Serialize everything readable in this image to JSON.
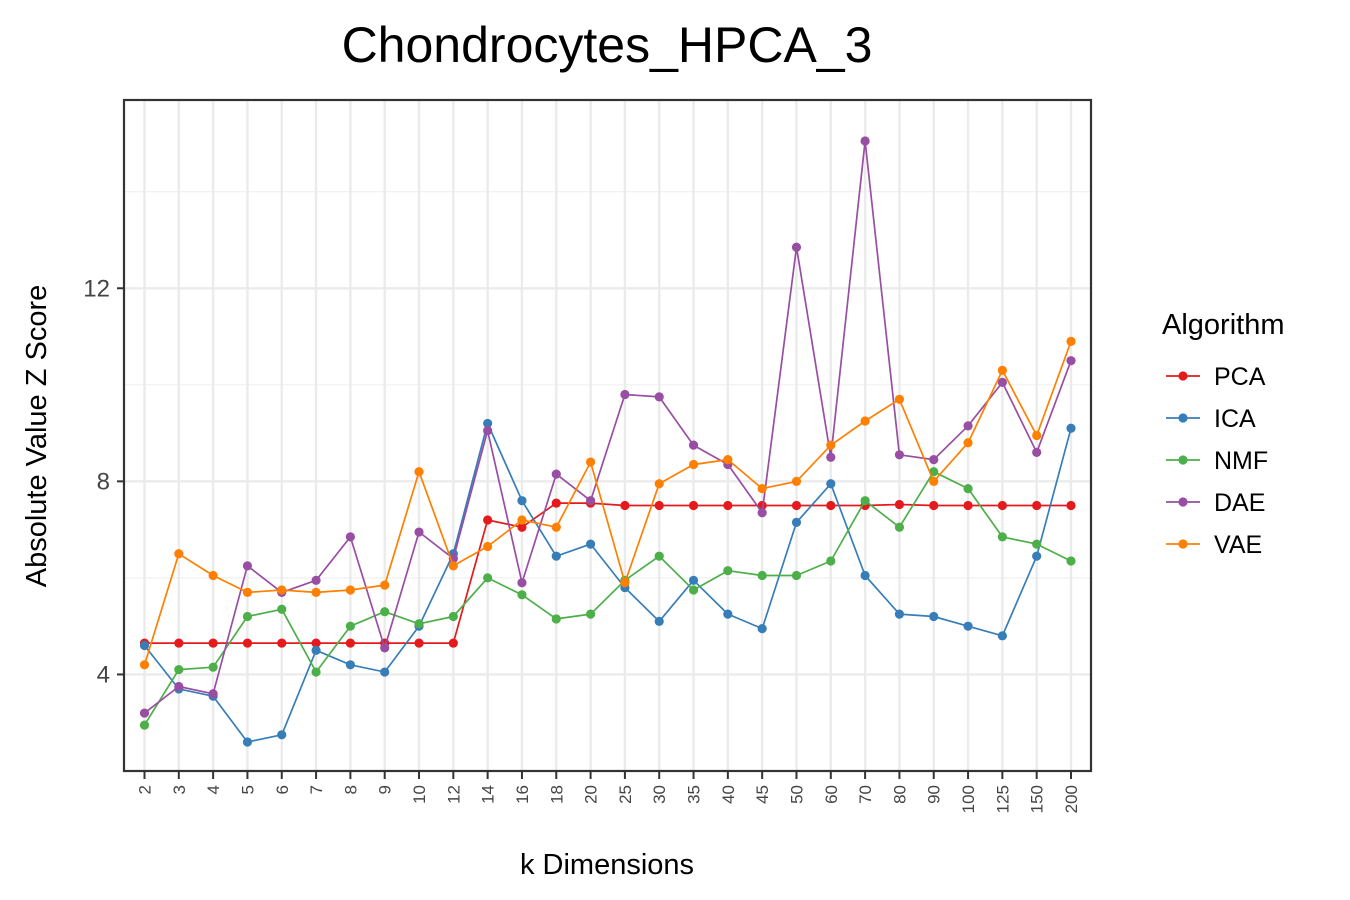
{
  "chart_data": {
    "type": "line",
    "title": "Chondrocytes_HPCA_3",
    "xlabel": "k Dimensions",
    "ylabel": "Absolute Value Z Score",
    "categories": [
      "2",
      "3",
      "4",
      "5",
      "6",
      "7",
      "8",
      "9",
      "10",
      "12",
      "14",
      "16",
      "18",
      "20",
      "25",
      "30",
      "35",
      "40",
      "45",
      "50",
      "60",
      "70",
      "80",
      "90",
      "100",
      "125",
      "150",
      "200"
    ],
    "ylim": [
      2.0,
      15.9
    ],
    "yticks": [
      4,
      8,
      12
    ],
    "ytick_labels": [
      "4",
      "8",
      "12"
    ],
    "grid": true,
    "legend_title": "Algorithm",
    "legend_position": "right",
    "series": [
      {
        "name": "PCA",
        "color": "#e41a1c",
        "values": [
          4.65,
          4.65,
          4.65,
          4.65,
          4.65,
          4.65,
          4.65,
          4.65,
          4.65,
          4.65,
          7.2,
          7.05,
          7.55,
          7.55,
          7.5,
          7.5,
          7.5,
          7.5,
          7.5,
          7.5,
          7.5,
          7.5,
          7.52,
          7.5,
          7.5,
          7.5,
          7.5,
          7.5
        ]
      },
      {
        "name": "ICA",
        "color": "#377eb8",
        "values": [
          4.6,
          3.7,
          3.55,
          2.6,
          2.75,
          4.5,
          4.2,
          4.05,
          5.0,
          6.5,
          9.2,
          7.6,
          6.45,
          6.7,
          5.8,
          5.1,
          5.95,
          5.25,
          4.95,
          7.15,
          7.95,
          6.05,
          5.25,
          5.2,
          5.0,
          4.8,
          6.45,
          9.1
        ]
      },
      {
        "name": "NMF",
        "color": "#4daf4a",
        "values": [
          2.95,
          4.1,
          4.15,
          5.2,
          5.35,
          4.05,
          5.0,
          5.3,
          5.05,
          5.2,
          6.0,
          5.65,
          5.15,
          5.25,
          5.95,
          6.45,
          5.75,
          6.15,
          6.05,
          6.05,
          6.35,
          7.6,
          7.05,
          8.2,
          7.85,
          6.85,
          6.7,
          6.35
        ]
      },
      {
        "name": "DAE",
        "color": "#984ea3",
        "values": [
          3.2,
          3.75,
          3.6,
          6.25,
          5.7,
          5.95,
          6.85,
          4.55,
          6.95,
          6.4,
          9.05,
          5.9,
          8.15,
          7.6,
          9.8,
          9.75,
          8.75,
          8.35,
          7.35,
          12.85,
          8.5,
          15.05,
          8.55,
          8.45,
          9.15,
          10.05,
          8.6,
          10.5
        ]
      },
      {
        "name": "VAE",
        "color": "#ff7f00",
        "values": [
          4.2,
          6.5,
          6.05,
          5.7,
          5.75,
          5.7,
          5.75,
          5.85,
          8.2,
          6.25,
          6.65,
          7.2,
          7.05,
          8.4,
          5.9,
          7.95,
          8.35,
          8.45,
          7.85,
          8.0,
          8.75,
          9.25,
          9.7,
          8.0,
          8.8,
          10.3,
          8.95,
          10.9
        ]
      }
    ]
  }
}
